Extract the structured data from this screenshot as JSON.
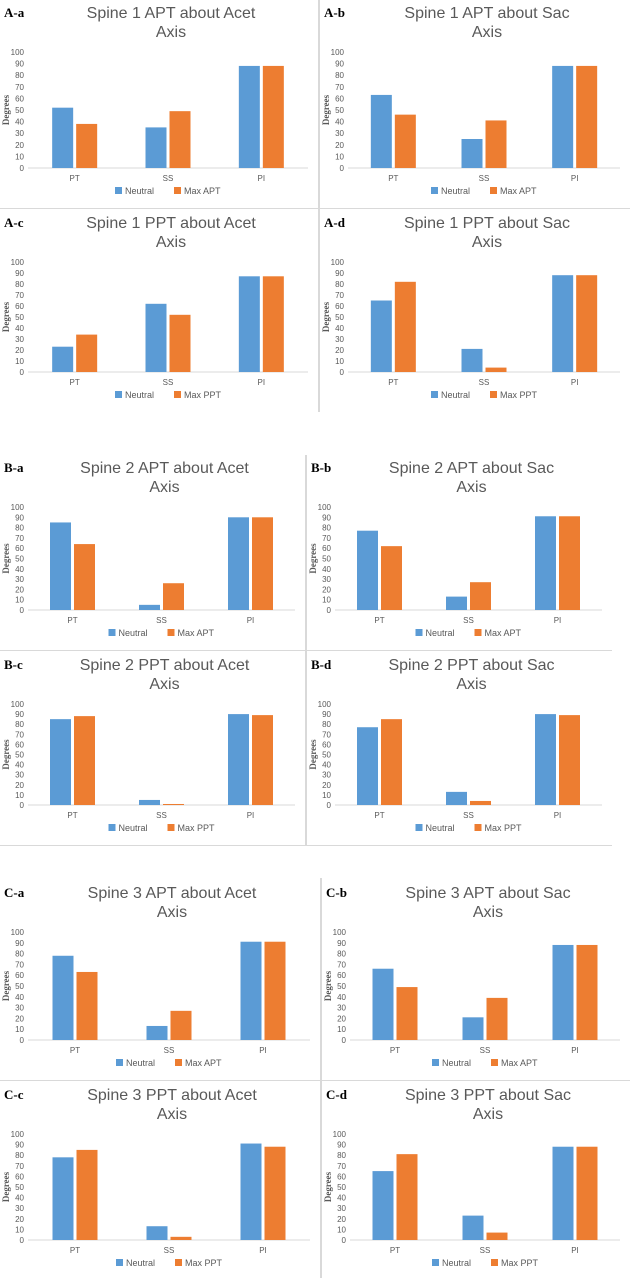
{
  "colors": {
    "neutral": "#5b9bd5",
    "max": "#ed7d31",
    "axis": "#d9d9d9",
    "text": "#595959",
    "title": "#595959"
  },
  "chart_data": [
    {
      "tag": "A-a",
      "type": "bar",
      "title": [
        "Spine 1 APT about Acet",
        "Axis"
      ],
      "ylabel": "Degrees",
      "ylim": [
        0,
        100
      ],
      "yticks": [
        0,
        10,
        20,
        30,
        40,
        50,
        60,
        70,
        80,
        90,
        100
      ],
      "categories": [
        "PT",
        "SS",
        "PI"
      ],
      "series": [
        {
          "name": "Neutral",
          "values": [
            52,
            35,
            88
          ]
        },
        {
          "name": "Max APT",
          "values": [
            38,
            49,
            88
          ]
        }
      ]
    },
    {
      "tag": "A-b",
      "type": "bar",
      "title": [
        "Spine 1 APT about Sac",
        "Axis"
      ],
      "ylabel": "Degrees",
      "ylim": [
        0,
        100
      ],
      "yticks": [
        0,
        10,
        20,
        30,
        40,
        50,
        60,
        70,
        80,
        90,
        100
      ],
      "categories": [
        "PT",
        "SS",
        "PI"
      ],
      "series": [
        {
          "name": "Neutral",
          "values": [
            63,
            25,
            88
          ]
        },
        {
          "name": "Max APT",
          "values": [
            46,
            41,
            88
          ]
        }
      ]
    },
    {
      "tag": "A-c",
      "type": "bar",
      "title": [
        "Spine 1 PPT about Acet",
        "Axis"
      ],
      "ylabel": "Degrees",
      "ylim": [
        0,
        100
      ],
      "yticks": [
        0,
        10,
        20,
        30,
        40,
        50,
        60,
        70,
        80,
        90,
        100
      ],
      "categories": [
        "PT",
        "SS",
        "PI"
      ],
      "series": [
        {
          "name": "Neutral",
          "values": [
            23,
            62,
            87
          ]
        },
        {
          "name": "Max PPT",
          "values": [
            34,
            52,
            87
          ]
        }
      ]
    },
    {
      "tag": "A-d",
      "type": "bar",
      "title": [
        "Spine 1 PPT about Sac",
        "Axis"
      ],
      "ylabel": "Degrees",
      "ylim": [
        0,
        100
      ],
      "yticks": [
        0,
        10,
        20,
        30,
        40,
        50,
        60,
        70,
        80,
        90,
        100
      ],
      "categories": [
        "PT",
        "SS",
        "PI"
      ],
      "series": [
        {
          "name": "Neutral",
          "values": [
            65,
            21,
            88
          ]
        },
        {
          "name": "Max PPT",
          "values": [
            82,
            4,
            88
          ]
        }
      ]
    },
    {
      "tag": "B-a",
      "type": "bar",
      "title": [
        "Spine 2 APT about Acet",
        "Axis"
      ],
      "ylabel": "Degrees",
      "ylim": [
        0,
        100
      ],
      "yticks": [
        0,
        10,
        20,
        30,
        40,
        50,
        60,
        70,
        80,
        90,
        100
      ],
      "categories": [
        "PT",
        "SS",
        "PI"
      ],
      "series": [
        {
          "name": "Neutral",
          "values": [
            85,
            5,
            90
          ]
        },
        {
          "name": "Max APT",
          "values": [
            64,
            26,
            90
          ]
        }
      ]
    },
    {
      "tag": "B-b",
      "type": "bar",
      "title": [
        "Spine 2 APT about Sac",
        "Axis"
      ],
      "ylabel": "Degrees",
      "ylim": [
        0,
        100
      ],
      "yticks": [
        0,
        10,
        20,
        30,
        40,
        50,
        60,
        70,
        80,
        90,
        100
      ],
      "categories": [
        "PT",
        "SS",
        "PI"
      ],
      "series": [
        {
          "name": "Neutral",
          "values": [
            77,
            13,
            91
          ]
        },
        {
          "name": "Max APT",
          "values": [
            62,
            27,
            91
          ]
        }
      ]
    },
    {
      "tag": "B-c",
      "type": "bar",
      "title": [
        "Spine 2 PPT about Acet",
        "Axis"
      ],
      "ylabel": "Degrees",
      "ylim": [
        0,
        100
      ],
      "yticks": [
        0,
        10,
        20,
        30,
        40,
        50,
        60,
        70,
        80,
        90,
        100
      ],
      "categories": [
        "PT",
        "SS",
        "PI"
      ],
      "series": [
        {
          "name": "Neutral",
          "values": [
            85,
            5,
            90
          ]
        },
        {
          "name": "Max  PPT",
          "values": [
            88,
            1,
            89
          ]
        }
      ]
    },
    {
      "tag": "B-d",
      "type": "bar",
      "title": [
        "Spine 2 PPT about Sac",
        "Axis"
      ],
      "ylabel": "Degrees",
      "ylim": [
        0,
        100
      ],
      "yticks": [
        0,
        10,
        20,
        30,
        40,
        50,
        60,
        70,
        80,
        90,
        100
      ],
      "categories": [
        "PT",
        "SS",
        "PI"
      ],
      "series": [
        {
          "name": "Neutral",
          "values": [
            77,
            13,
            90
          ]
        },
        {
          "name": "Max  PPT",
          "values": [
            85,
            4,
            89
          ]
        }
      ]
    },
    {
      "tag": "C-a",
      "type": "bar",
      "title": [
        "Spine 3 APT about Acet",
        "Axis"
      ],
      "ylabel": "Degrees",
      "ylim": [
        0,
        100
      ],
      "yticks": [
        0,
        10,
        20,
        30,
        40,
        50,
        60,
        70,
        80,
        90,
        100
      ],
      "categories": [
        "PT",
        "SS",
        "PI"
      ],
      "series": [
        {
          "name": "Neutral",
          "values": [
            78,
            13,
            91
          ]
        },
        {
          "name": "Max APT",
          "values": [
            63,
            27,
            91
          ]
        }
      ]
    },
    {
      "tag": "C-b",
      "type": "bar",
      "title": [
        "Spine 3 APT about Sac",
        "Axis"
      ],
      "ylabel": "Degrees",
      "ylim": [
        0,
        100
      ],
      "yticks": [
        0,
        10,
        20,
        30,
        40,
        50,
        60,
        70,
        80,
        90,
        100
      ],
      "categories": [
        "PT",
        "SS",
        "PI"
      ],
      "series": [
        {
          "name": "Neutral",
          "values": [
            66,
            21,
            88
          ]
        },
        {
          "name": "Max APT",
          "values": [
            49,
            39,
            88
          ]
        }
      ]
    },
    {
      "tag": "C-c",
      "type": "bar",
      "title": [
        "Spine 3 PPT about Acet",
        "Axis"
      ],
      "ylabel": "Degrees",
      "ylim": [
        0,
        100
      ],
      "yticks": [
        0,
        10,
        20,
        30,
        40,
        50,
        60,
        70,
        80,
        90,
        100
      ],
      "categories": [
        "PT",
        "SS",
        "PI"
      ],
      "series": [
        {
          "name": "Neutral",
          "values": [
            78,
            13,
            91
          ]
        },
        {
          "name": "Max PPT",
          "values": [
            85,
            3,
            88
          ]
        }
      ]
    },
    {
      "tag": "C-d",
      "type": "bar",
      "title": [
        "Spine 3 PPT about Sac",
        "Axis"
      ],
      "ylabel": "Degrees",
      "ylim": [
        0,
        100
      ],
      "yticks": [
        0,
        10,
        20,
        30,
        40,
        50,
        60,
        70,
        80,
        90,
        100
      ],
      "categories": [
        "PT",
        "SS",
        "PI"
      ],
      "series": [
        {
          "name": "Neutral",
          "values": [
            65,
            23,
            88
          ]
        },
        {
          "name": "Max PPT",
          "values": [
            81,
            7,
            88
          ]
        }
      ]
    }
  ]
}
